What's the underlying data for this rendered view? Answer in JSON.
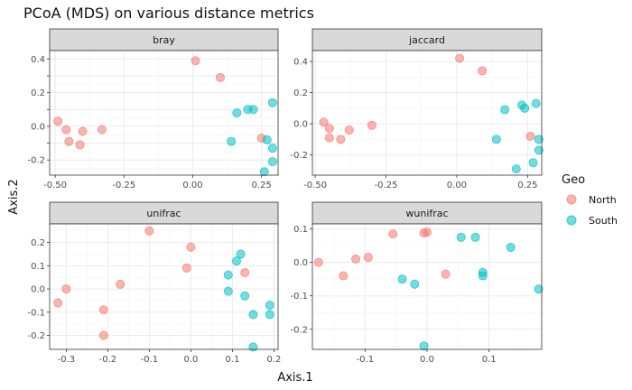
{
  "chart_data": {
    "type": "scatter",
    "title": "PCoA (MDS) on various distance metrics",
    "xlabel": "Axis.1",
    "ylabel": "Axis.2",
    "legend": {
      "title": "Geo",
      "position": "right",
      "entries": [
        {
          "name": "North",
          "color": "#F8766D"
        },
        {
          "name": "South",
          "color": "#00BFC4"
        }
      ]
    },
    "grid": true,
    "facets": [
      {
        "name": "bray",
        "xlim": [
          -0.52,
          0.31
        ],
        "ylim": [
          -0.29,
          0.45
        ],
        "xticks": [
          -0.5,
          -0.25,
          0.0,
          0.25
        ],
        "xtick_labels": [
          "-0.50",
          "-0.25",
          "0.00",
          "0.25"
        ],
        "yticks": [
          -0.2,
          -0.1,
          0.0,
          0.1,
          0.2,
          0.3,
          0.4
        ],
        "ytick_labels": [
          "-0.2",
          "",
          "0.0",
          "",
          "0.2",
          "",
          "0.4"
        ],
        "series": [
          {
            "name": "North",
            "points": [
              [
                -0.49,
                0.03
              ],
              [
                -0.46,
                -0.02
              ],
              [
                -0.45,
                -0.09
              ],
              [
                -0.41,
                -0.11
              ],
              [
                -0.4,
                -0.03
              ],
              [
                -0.33,
                -0.02
              ],
              [
                0.01,
                0.39
              ],
              [
                0.1,
                0.29
              ],
              [
                0.25,
                -0.07
              ]
            ]
          },
          {
            "name": "South",
            "points": [
              [
                0.14,
                -0.09
              ],
              [
                0.16,
                0.08
              ],
              [
                0.2,
                0.1
              ],
              [
                0.22,
                0.1
              ],
              [
                0.26,
                -0.27
              ],
              [
                0.27,
                -0.08
              ],
              [
                0.29,
                0.14
              ],
              [
                0.29,
                -0.13
              ],
              [
                0.29,
                -0.21
              ]
            ]
          }
        ]
      },
      {
        "name": "jaccard",
        "xlim": [
          -0.51,
          0.3
        ],
        "ylim": [
          -0.33,
          0.47
        ],
        "xticks": [
          -0.5,
          -0.25,
          0.0,
          0.25
        ],
        "xtick_labels": [
          "-0.50",
          "-0.25",
          "0.00",
          "0.25"
        ],
        "yticks": [
          -0.2,
          0.0,
          0.2,
          0.4
        ],
        "ytick_labels": [
          "-0.2",
          "0.0",
          "0.2",
          "0.4"
        ],
        "series": [
          {
            "name": "North",
            "points": [
              [
                -0.47,
                0.01
              ],
              [
                -0.45,
                -0.09
              ],
              [
                -0.45,
                -0.03
              ],
              [
                -0.41,
                -0.1
              ],
              [
                -0.38,
                -0.04
              ],
              [
                -0.3,
                -0.01
              ],
              [
                0.01,
                0.42
              ],
              [
                0.09,
                0.34
              ],
              [
                0.26,
                -0.08
              ]
            ]
          },
          {
            "name": "South",
            "points": [
              [
                0.14,
                -0.1
              ],
              [
                0.17,
                0.09
              ],
              [
                0.21,
                -0.29
              ],
              [
                0.23,
                0.12
              ],
              [
                0.24,
                0.1
              ],
              [
                0.27,
                -0.25
              ],
              [
                0.28,
                0.13
              ],
              [
                0.29,
                -0.1
              ],
              [
                0.29,
                -0.17
              ]
            ]
          }
        ]
      },
      {
        "name": "unifrac",
        "xlim": [
          -0.34,
          0.21
        ],
        "ylim": [
          -0.26,
          0.28
        ],
        "xticks": [
          -0.3,
          -0.2,
          -0.1,
          0.0,
          0.1,
          0.2
        ],
        "xtick_labels": [
          "-0.3",
          "-0.2",
          "-0.1",
          "0.0",
          "0.1",
          "0.2"
        ],
        "yticks": [
          -0.2,
          -0.1,
          0.0,
          0.1,
          0.2
        ],
        "ytick_labels": [
          "-0.2",
          "-0.1",
          "0.0",
          "0.1",
          "0.2"
        ],
        "series": [
          {
            "name": "North",
            "points": [
              [
                -0.32,
                -0.06
              ],
              [
                -0.3,
                0.0
              ],
              [
                -0.21,
                -0.09
              ],
              [
                -0.21,
                -0.2
              ],
              [
                -0.17,
                0.02
              ],
              [
                -0.1,
                0.25
              ],
              [
                -0.01,
                0.09
              ],
              [
                0.0,
                0.18
              ],
              [
                0.13,
                0.07
              ]
            ]
          },
          {
            "name": "South",
            "points": [
              [
                0.09,
                -0.01
              ],
              [
                0.09,
                0.06
              ],
              [
                0.11,
                0.12
              ],
              [
                0.12,
                0.15
              ],
              [
                0.13,
                -0.03
              ],
              [
                0.15,
                -0.11
              ],
              [
                0.15,
                -0.25
              ],
              [
                0.19,
                -0.07
              ],
              [
                0.19,
                -0.11
              ]
            ]
          }
        ]
      },
      {
        "name": "wunifrac",
        "xlim": [
          -0.185,
          0.185
        ],
        "ylim": [
          -0.26,
          0.115
        ],
        "xticks": [
          -0.1,
          0.0,
          0.1
        ],
        "xtick_labels": [
          "-0.1",
          "0.0",
          "0.1"
        ],
        "yticks": [
          -0.2,
          -0.1,
          0.0,
          0.1
        ],
        "ytick_labels": [
          "-0.2",
          "-0.1",
          "0.0",
          "0.1"
        ],
        "series": [
          {
            "name": "North",
            "points": [
              [
                -0.175,
                0.0
              ],
              [
                -0.135,
                -0.04
              ],
              [
                -0.115,
                0.01
              ],
              [
                -0.095,
                0.015
              ],
              [
                -0.055,
                0.085
              ],
              [
                -0.005,
                0.088
              ],
              [
                0.0,
                0.09
              ],
              [
                0.03,
                -0.035
              ]
            ]
          },
          {
            "name": "South",
            "points": [
              [
                -0.04,
                -0.05
              ],
              [
                -0.02,
                -0.065
              ],
              [
                -0.005,
                -0.25
              ],
              [
                0.055,
                0.075
              ],
              [
                0.078,
                0.075
              ],
              [
                0.09,
                -0.03
              ],
              [
                0.09,
                -0.04
              ],
              [
                0.135,
                0.045
              ],
              [
                0.18,
                -0.08
              ]
            ]
          }
        ]
      }
    ]
  }
}
